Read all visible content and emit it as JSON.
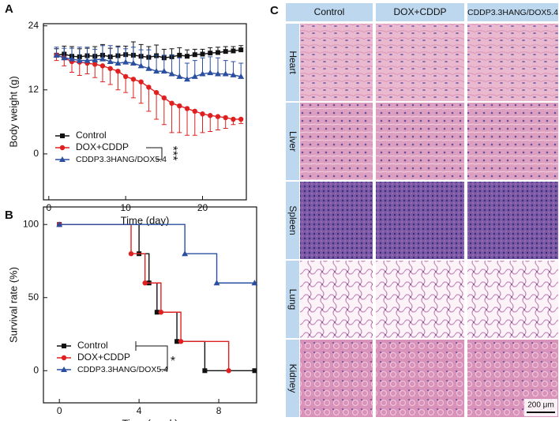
{
  "panel_labels": [
    "A",
    "B",
    "C"
  ],
  "chart_data": [
    {
      "type": "line",
      "xlabel": "Time (day)",
      "ylabel": "Body weight (g)",
      "xlim": [
        -0.7,
        25.7
      ],
      "xticks": [
        0,
        10,
        20
      ],
      "ylim": [
        -8.6,
        24.4
      ],
      "yticks": [
        0,
        12,
        24
      ],
      "annotation": "***",
      "x": [
        1,
        2,
        3,
        4,
        5,
        6,
        7,
        8,
        9,
        10,
        11,
        12,
        13,
        14,
        15,
        16,
        17,
        18,
        19,
        20,
        21,
        22,
        23,
        24,
        25
      ],
      "series": [
        {
          "name": "Control",
          "color": "#111111",
          "marker": "square",
          "error_direction": "up",
          "values": [
            18.5,
            18.7,
            18.3,
            18.2,
            18.4,
            18.3,
            18.5,
            18.2,
            18.4,
            18.6,
            18.5,
            18.3,
            18.1,
            18.4,
            18.0,
            18.2,
            18.5,
            18.3,
            18.6,
            18.7,
            18.9,
            19.0,
            19.2,
            19.3,
            19.5
          ],
          "errors": [
            1.2,
            1.5,
            1.8,
            1.5,
            1.4,
            1.8,
            2.0,
            1.6,
            1.8,
            1.6,
            2.5,
            2.2,
            2.0,
            2.0,
            1.6,
            1.5,
            1.4,
            1.2,
            1.0,
            0.9,
            1.0,
            1.0,
            0.9,
            0.8,
            0.8
          ]
        },
        {
          "name": "DOX+CDDP",
          "color": "#e02020",
          "marker": "circle",
          "error_direction": "down",
          "values": [
            18.5,
            18.0,
            17.3,
            17.2,
            17.0,
            16.8,
            16.5,
            16.0,
            15.5,
            14.5,
            14.0,
            13.5,
            12.5,
            11.5,
            10.5,
            9.5,
            9.0,
            8.5,
            8.0,
            7.5,
            7.2,
            7.0,
            6.8,
            6.5,
            6.5
          ],
          "errors": [
            1.0,
            1.5,
            2.0,
            2.5,
            2.0,
            2.5,
            3.0,
            3.0,
            3.5,
            3.0,
            3.5,
            4.0,
            4.5,
            5.0,
            5.0,
            5.5,
            5.0,
            5.0,
            4.5,
            3.5,
            3.0,
            2.5,
            2.0,
            1.0,
            0.8
          ]
        },
        {
          "name": "CDDP3.3HANG/DOX5.4",
          "color": "#2a4fa0",
          "marker": "triangle",
          "error_direction": "up",
          "values": [
            18.5,
            18.0,
            17.8,
            17.5,
            17.5,
            17.6,
            17.8,
            17.3,
            17.0,
            17.2,
            17.0,
            16.5,
            16.0,
            15.5,
            15.5,
            15.0,
            14.5,
            14.0,
            14.5,
            15.0,
            15.2,
            15.0,
            15.0,
            14.8,
            14.5
          ],
          "errors": [
            1.5,
            1.8,
            2.0,
            2.5,
            2.5,
            2.0,
            2.5,
            3.0,
            3.0,
            2.5,
            3.0,
            3.0,
            3.5,
            3.0,
            3.0,
            3.5,
            3.5,
            3.0,
            3.0,
            3.0,
            3.0,
            3.0,
            2.5,
            2.5,
            2.5
          ]
        }
      ]
    },
    {
      "type": "step",
      "xlabel": "Time (week)",
      "ylabel": "Survival rate (%)",
      "xlim": [
        -0.8,
        9.9
      ],
      "xticks": [
        0,
        4,
        8
      ],
      "ylim": [
        -22,
        112
      ],
      "yticks": [
        0,
        50,
        100
      ],
      "annotation": "*",
      "series": [
        {
          "name": "Control",
          "color": "#111111",
          "marker": "square",
          "x": [
            0,
            4.0,
            4.5,
            4.9,
            5.9,
            7.3,
            9.8
          ],
          "values": [
            100,
            80,
            60,
            40,
            20,
            0,
            0
          ]
        },
        {
          "name": "DOX+CDDP",
          "color": "#e02020",
          "marker": "circle",
          "x": [
            0,
            3.6,
            4.3,
            5.1,
            6.1,
            8.5
          ],
          "values": [
            100,
            80,
            60,
            40,
            20,
            0
          ]
        },
        {
          "name": "CDDP3.3HANG/DOX5.4",
          "color": "#2a4fa0",
          "marker": "triangle",
          "x": [
            0,
            6.3,
            7.9,
            9.8
          ],
          "values": [
            100,
            80,
            60,
            60
          ]
        }
      ]
    }
  ],
  "histology": {
    "columns": [
      "Control",
      "DOX+CDDP",
      "CDDP3.3HANG/DOX5.4"
    ],
    "rows": [
      "Heart",
      "Liver",
      "Spleen",
      "Lung",
      "Kidney"
    ],
    "scale_bar": "200 μm"
  }
}
